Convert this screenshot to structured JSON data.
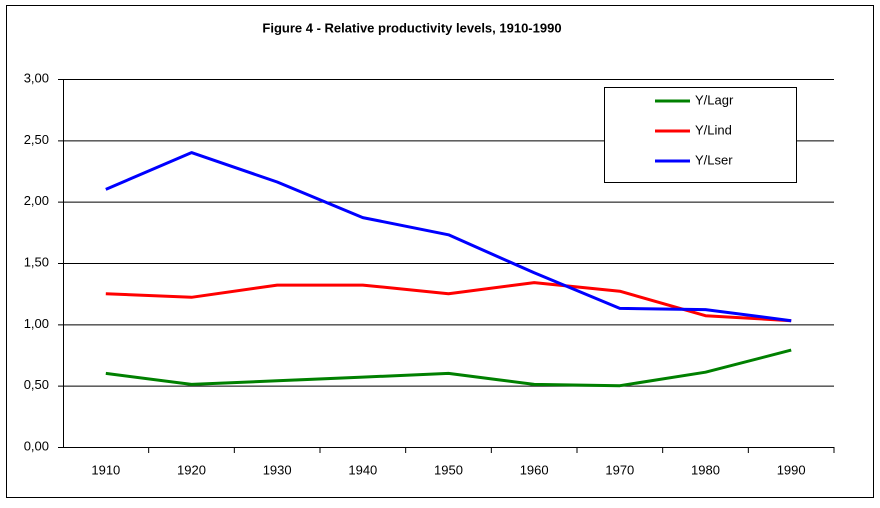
{
  "chart_data": {
    "type": "line",
    "title": "Figure 4 - Relative productivity levels, 1910-1990",
    "categories": [
      "1910",
      "1920",
      "1930",
      "1940",
      "1950",
      "1960",
      "1970",
      "1980",
      "1990"
    ],
    "series": [
      {
        "name": "Y/Lagr",
        "color": "#008000",
        "values": [
          0.6,
          0.51,
          0.54,
          0.57,
          0.6,
          0.51,
          0.5,
          0.61,
          0.79
        ]
      },
      {
        "name": "Y/Lind",
        "color": "#ff0000",
        "values": [
          1.25,
          1.22,
          1.32,
          1.32,
          1.25,
          1.34,
          1.27,
          1.07,
          1.03
        ]
      },
      {
        "name": "Y/Lser",
        "color": "#0000ff",
        "values": [
          2.1,
          2.4,
          2.16,
          1.87,
          1.73,
          1.42,
          1.13,
          1.12,
          1.03
        ]
      }
    ],
    "ylim": [
      0,
      3
    ],
    "yticks": [
      {
        "value": 0,
        "label": "0,00"
      },
      {
        "value": 0.5,
        "label": "0,50"
      },
      {
        "value": 1,
        "label": "1,00"
      },
      {
        "value": 1.5,
        "label": "1,50"
      },
      {
        "value": 2,
        "label": "2,00"
      },
      {
        "value": 2.5,
        "label": "2,50"
      },
      {
        "value": 3,
        "label": "3,00"
      }
    ],
    "grid": true,
    "legend": "top-right"
  }
}
